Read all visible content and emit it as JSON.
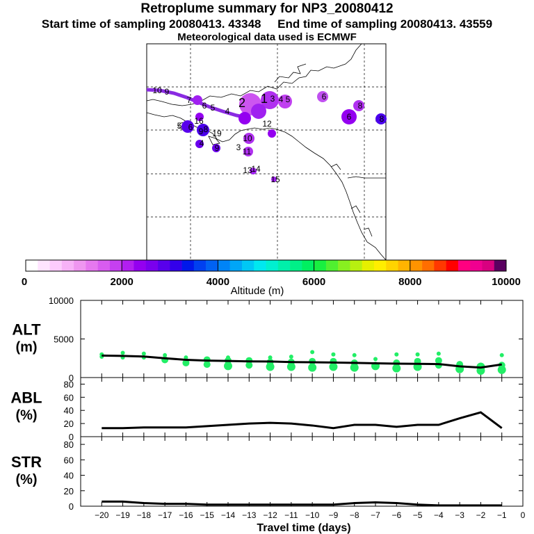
{
  "header": {
    "title": "Retroplume summary for NP3_20080412",
    "sampling": "Start time of sampling 20080413. 43348     End time of sampling 20080413. 43559",
    "met": "Meteorological data used is ECMWF"
  },
  "colors": {
    "plume_line": "#8a2be2",
    "alt_dots": "#22ee66",
    "profile_line": "#000000"
  },
  "chart_data": [
    {
      "type": "colorbar",
      "xlabel": "Altitude (m)",
      "range": [
        0,
        10000
      ],
      "tick_labels": [
        "0",
        "2000",
        "4000",
        "6000",
        "8000",
        "10000"
      ],
      "tick_values": [
        0,
        2000,
        4000,
        6000,
        8000,
        10000
      ],
      "bins": 40,
      "colors": [
        "#ffffff",
        "#ffe4ff",
        "#fcccfc",
        "#f7b2f7",
        "#ef96f0",
        "#e678ef",
        "#d85cf0",
        "#c640f0",
        "#b21ff0",
        "#9400f0",
        "#7a00ee",
        "#5800ec",
        "#3300ea",
        "#0018ea",
        "#0040f0",
        "#0062f3",
        "#0084f7",
        "#00a6f7",
        "#00c8f5",
        "#00e8f0",
        "#00f0d0",
        "#00f0aa",
        "#00f088",
        "#00f060",
        "#18f040",
        "#50f030",
        "#88f020",
        "#b8f010",
        "#e6f000",
        "#ffee00",
        "#ffd400",
        "#ffb400",
        "#ff9400",
        "#ff6e00",
        "#ff3800",
        "#ff0000",
        "#ff0080",
        "#f00090",
        "#d80080",
        "#5a0060"
      ]
    },
    {
      "type": "scatter",
      "title": "ALT",
      "unit": "(m)",
      "ylim": [
        0,
        10000
      ],
      "ytick_labels": [
        "0",
        "5000",
        "10000"
      ],
      "ytick_values": [
        0,
        5000,
        10000
      ],
      "x": [
        -20,
        -19,
        -18,
        -17,
        -16,
        -15,
        -14,
        -13,
        -12,
        -11,
        -10,
        -9,
        -8,
        -7,
        -6,
        -5,
        -4,
        -3,
        -2,
        -1
      ],
      "line": [
        2850,
        2800,
        2720,
        2500,
        2300,
        2200,
        2150,
        2100,
        2080,
        2000,
        1980,
        1950,
        1900,
        1850,
        1800,
        1780,
        1750,
        1450,
        1300,
        1700
      ],
      "points": [
        [
          -20,
          2700
        ],
        [
          -20,
          3000
        ],
        [
          -19,
          2600
        ],
        [
          -19,
          3200
        ],
        [
          -18,
          2600
        ],
        [
          -18,
          3100
        ],
        [
          -17,
          2300
        ],
        [
          -17,
          2900
        ],
        [
          -16,
          1900
        ],
        [
          -16,
          2600
        ],
        [
          -15,
          1700
        ],
        [
          -15,
          2300
        ],
        [
          -14,
          1500
        ],
        [
          -14,
          2200
        ],
        [
          -14,
          2600
        ],
        [
          -13,
          1600
        ],
        [
          -13,
          2200
        ],
        [
          -12,
          1400
        ],
        [
          -12,
          2000
        ],
        [
          -12,
          2600
        ],
        [
          -11,
          1400
        ],
        [
          -11,
          2000
        ],
        [
          -11,
          2700
        ],
        [
          -10,
          1300
        ],
        [
          -10,
          2100
        ],
        [
          -10,
          3300
        ],
        [
          -9,
          1400
        ],
        [
          -9,
          2100
        ],
        [
          -9,
          3000
        ],
        [
          -8,
          1300
        ],
        [
          -8,
          1900
        ],
        [
          -8,
          2900
        ],
        [
          -7,
          1500
        ],
        [
          -7,
          2400
        ],
        [
          -6,
          1200
        ],
        [
          -6,
          1900
        ],
        [
          -6,
          3000
        ],
        [
          -5,
          1400
        ],
        [
          -5,
          2100
        ],
        [
          -5,
          3000
        ],
        [
          -4,
          1600
        ],
        [
          -4,
          2200
        ],
        [
          -4,
          3100
        ],
        [
          -3,
          1100
        ],
        [
          -3,
          1700
        ],
        [
          -2,
          900
        ],
        [
          -2,
          1400
        ],
        [
          -1,
          1000
        ],
        [
          -1,
          1600
        ],
        [
          -1,
          2900
        ]
      ]
    },
    {
      "type": "line",
      "title": "ABL",
      "unit": "(%)",
      "ylim": [
        0,
        90
      ],
      "ytick_labels": [
        "0",
        "20",
        "40",
        "60",
        "80"
      ],
      "ytick_values": [
        0,
        20,
        40,
        60,
        80
      ],
      "x": [
        -20,
        -19,
        -18,
        -17,
        -16,
        -15,
        -14,
        -13,
        -12,
        -11,
        -10,
        -9,
        -8,
        -7,
        -6,
        -5,
        -4,
        -3,
        -2,
        -1
      ],
      "values": [
        13,
        13,
        14,
        14,
        14,
        16,
        18,
        20,
        21,
        20,
        17,
        13,
        18,
        18,
        15,
        18,
        18,
        28,
        37,
        13
      ]
    },
    {
      "type": "line",
      "title": "STR",
      "unit": "(%)",
      "ylim": [
        0,
        90
      ],
      "ytick_labels": [
        "0",
        "20",
        "40",
        "60",
        "80"
      ],
      "ytick_values": [
        0,
        20,
        40,
        60,
        80
      ],
      "xlabel": "Travel time (days)",
      "xtick_labels": [
        "−20",
        "−19",
        "−18",
        "−17",
        "−16",
        "−15",
        "−14",
        "−13",
        "−12",
        "−11",
        "−10",
        "−9",
        "−8",
        "−7",
        "−6",
        "−5",
        "−4",
        "−3",
        "−2",
        "−1",
        "0"
      ],
      "x": [
        -20,
        -19,
        -18,
        -17,
        -16,
        -15,
        -14,
        -13,
        -12,
        -11,
        -10,
        -9,
        -8,
        -7,
        -6,
        -5,
        -4,
        -3,
        -2,
        -1
      ],
      "values": [
        6,
        6,
        4,
        3,
        3,
        2,
        2,
        2,
        2,
        2,
        2,
        2,
        4,
        5,
        4,
        2,
        1,
        1,
        1,
        1
      ]
    }
  ],
  "map": {
    "day_labels": [
      {
        "t": "10",
        "c": "#7c00ee"
      },
      {
        "t": "9",
        "c": "#7c00ee"
      },
      {
        "t": "7",
        "c": "#a020f0"
      },
      {
        "t": "6",
        "c": "#a020f0"
      },
      {
        "t": "5",
        "c": "#a020f0"
      },
      {
        "t": "4",
        "c": "#a020f0"
      },
      {
        "t": "2",
        "c": "#c040f0"
      },
      {
        "t": "1",
        "c": "#c040f0"
      },
      {
        "t": "3",
        "c": "#c040f0"
      },
      {
        "t": "4",
        "c": "#b030f0"
      },
      {
        "t": "5",
        "c": "#b030f0"
      },
      {
        "t": "6",
        "c": "#c050f0"
      },
      {
        "t": "6",
        "c": "#9400f0"
      },
      {
        "t": "8",
        "c": "#b030f0"
      },
      {
        "t": "8",
        "c": "#4a00ec"
      },
      {
        "t": "5",
        "c": "#4a00ec"
      },
      {
        "t": "6",
        "c": "#5800ec"
      },
      {
        "t": "8",
        "c": "#5800ec"
      },
      {
        "t": "4",
        "c": "#6a00ee"
      },
      {
        "t": "9",
        "c": "#6a00ee"
      },
      {
        "t": "10",
        "c": "#b030f0"
      },
      {
        "t": "11",
        "c": "#b030f0"
      },
      {
        "t": "3",
        "c": "#9400f0"
      },
      {
        "t": "12",
        "c": "#6a00ee"
      },
      {
        "t": "14",
        "c": "#a020f0"
      },
      {
        "t": "13",
        "c": "#a020f0"
      },
      {
        "t": "16",
        "c": "#6a00ee"
      },
      {
        "t": "15",
        "c": "#6a00ee"
      },
      {
        "t": "9",
        "c": "#9400f0"
      },
      {
        "t": "19",
        "c": "#8a00f0"
      }
    ]
  }
}
